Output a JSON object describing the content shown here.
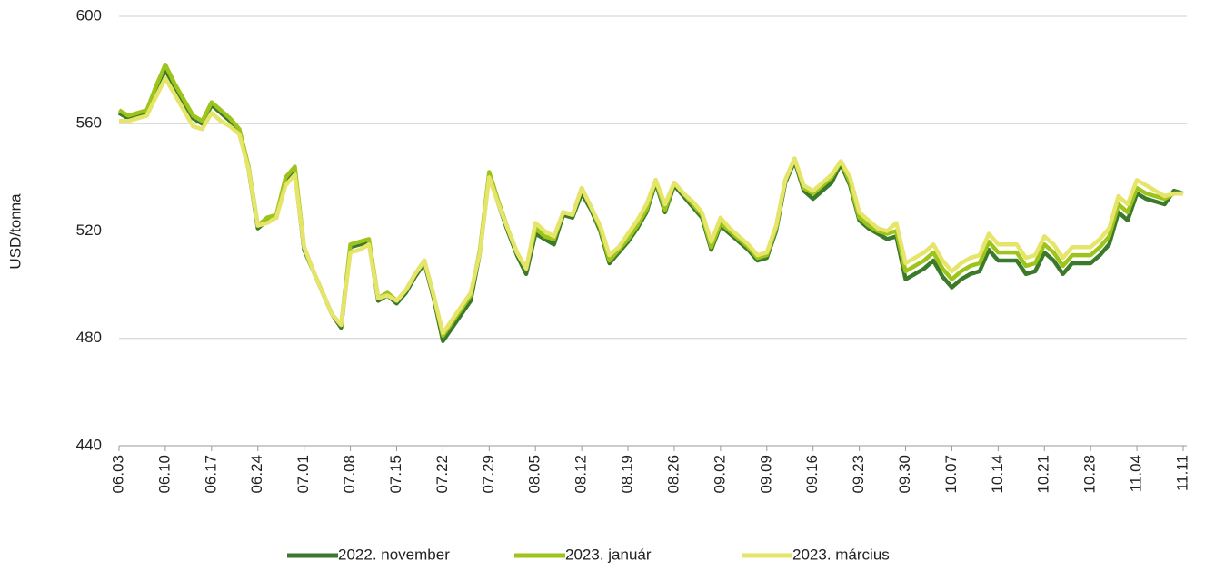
{
  "chart_data": {
    "type": "line",
    "y_label": "USD/tonna",
    "categories": [
      "06.03",
      null,
      null,
      null,
      null,
      "06.10",
      null,
      null,
      null,
      null,
      "06.17",
      null,
      null,
      null,
      null,
      "06.24",
      null,
      null,
      null,
      null,
      "07.01",
      null,
      null,
      null,
      null,
      "07.08",
      null,
      null,
      null,
      null,
      "07.15",
      null,
      null,
      null,
      null,
      "07.22",
      null,
      null,
      null,
      null,
      "07.29",
      null,
      null,
      null,
      null,
      "08.05",
      null,
      null,
      null,
      null,
      "08.12",
      null,
      null,
      null,
      null,
      "08.19",
      null,
      null,
      null,
      null,
      "08.26",
      null,
      null,
      null,
      null,
      "09.02",
      null,
      null,
      null,
      null,
      "09.09",
      null,
      null,
      null,
      null,
      "09.16",
      null,
      null,
      null,
      null,
      "09.23",
      null,
      null,
      null,
      null,
      "09.30",
      null,
      null,
      null,
      null,
      "10.07",
      null,
      null,
      null,
      null,
      "10.14",
      null,
      null,
      null,
      null,
      "10.21",
      null,
      null,
      null,
      null,
      "10.28",
      null,
      null,
      null,
      null,
      "11.04",
      null,
      null,
      null,
      null,
      "11.11"
    ],
    "series": [
      {
        "name": "2022. november",
        "color": "#3b7a2a",
        "values": [
          564,
          562,
          563,
          564,
          572,
          580,
          574,
          568,
          562,
          560,
          567,
          564,
          561,
          557,
          543,
          521,
          524,
          525,
          539,
          542,
          513,
          505,
          497,
          489,
          484,
          514,
          515,
          516,
          494,
          496,
          493,
          497,
          503,
          508,
          495,
          479,
          484,
          489,
          494,
          512,
          541,
          530,
          520,
          511,
          504,
          519,
          517,
          515,
          526,
          525,
          534,
          528,
          520,
          508,
          512,
          516,
          521,
          527,
          538,
          527,
          537,
          533,
          529,
          525,
          513,
          522,
          519,
          516,
          513,
          509,
          510,
          520,
          538,
          546,
          535,
          532,
          535,
          538,
          545,
          537,
          524,
          521,
          519,
          517,
          518,
          502,
          504,
          506,
          509,
          503,
          499,
          502,
          504,
          505,
          513,
          509,
          509,
          509,
          504,
          505,
          512,
          509,
          504,
          508,
          508,
          508,
          511,
          515,
          527,
          524,
          534,
          532,
          531,
          530,
          535,
          534
        ]
      },
      {
        "name": "2023. január",
        "color": "#9dc41a",
        "values": [
          565,
          563,
          564,
          565,
          574,
          582,
          575,
          569,
          563,
          561,
          568,
          565,
          562,
          558,
          544,
          522,
          525,
          526,
          540,
          544,
          514,
          505,
          497,
          489,
          485,
          515,
          516,
          517,
          495,
          497,
          494,
          498,
          504,
          509,
          496,
          481,
          486,
          491,
          496,
          513,
          542,
          531,
          521,
          512,
          506,
          521,
          518,
          517,
          527,
          526,
          536,
          529,
          521,
          509,
          513,
          517,
          522,
          528,
          539,
          528,
          538,
          534,
          530,
          526,
          514,
          523,
          520,
          517,
          514,
          510,
          511,
          521,
          539,
          547,
          536,
          534,
          537,
          540,
          546,
          538,
          525,
          522,
          520,
          519,
          520,
          505,
          507,
          509,
          512,
          506,
          502,
          505,
          507,
          508,
          516,
          512,
          512,
          512,
          507,
          508,
          515,
          512,
          507,
          511,
          511,
          511,
          514,
          518,
          530,
          527,
          536,
          534,
          533,
          532,
          534,
          534
        ]
      },
      {
        "name": "2023. március",
        "color": "#e6e56a",
        "values": [
          561,
          561,
          562,
          563,
          570,
          577,
          571,
          565,
          559,
          558,
          564,
          561,
          559,
          556,
          543,
          522,
          523,
          525,
          537,
          541,
          514,
          505,
          497,
          489,
          485,
          512,
          513,
          515,
          495,
          496,
          494,
          498,
          504,
          509,
          496,
          482,
          487,
          492,
          497,
          512,
          540,
          530,
          521,
          512,
          506,
          523,
          520,
          518,
          527,
          526,
          536,
          529,
          522,
          511,
          514,
          519,
          524,
          530,
          539,
          530,
          538,
          534,
          531,
          527,
          516,
          525,
          521,
          518,
          515,
          511,
          512,
          522,
          539,
          547,
          537,
          535,
          538,
          541,
          546,
          540,
          527,
          524,
          521,
          520,
          523,
          508,
          510,
          512,
          515,
          509,
          505,
          508,
          510,
          511,
          519,
          515,
          515,
          515,
          510,
          511,
          518,
          515,
          510,
          514,
          514,
          514,
          517,
          521,
          533,
          530,
          539,
          537,
          535,
          533,
          534,
          534
        ]
      }
    ],
    "ylim": [
      440,
      600
    ],
    "yticks": [
      440,
      480,
      520,
      560,
      600
    ],
    "grid": true,
    "legend": "bottom"
  }
}
